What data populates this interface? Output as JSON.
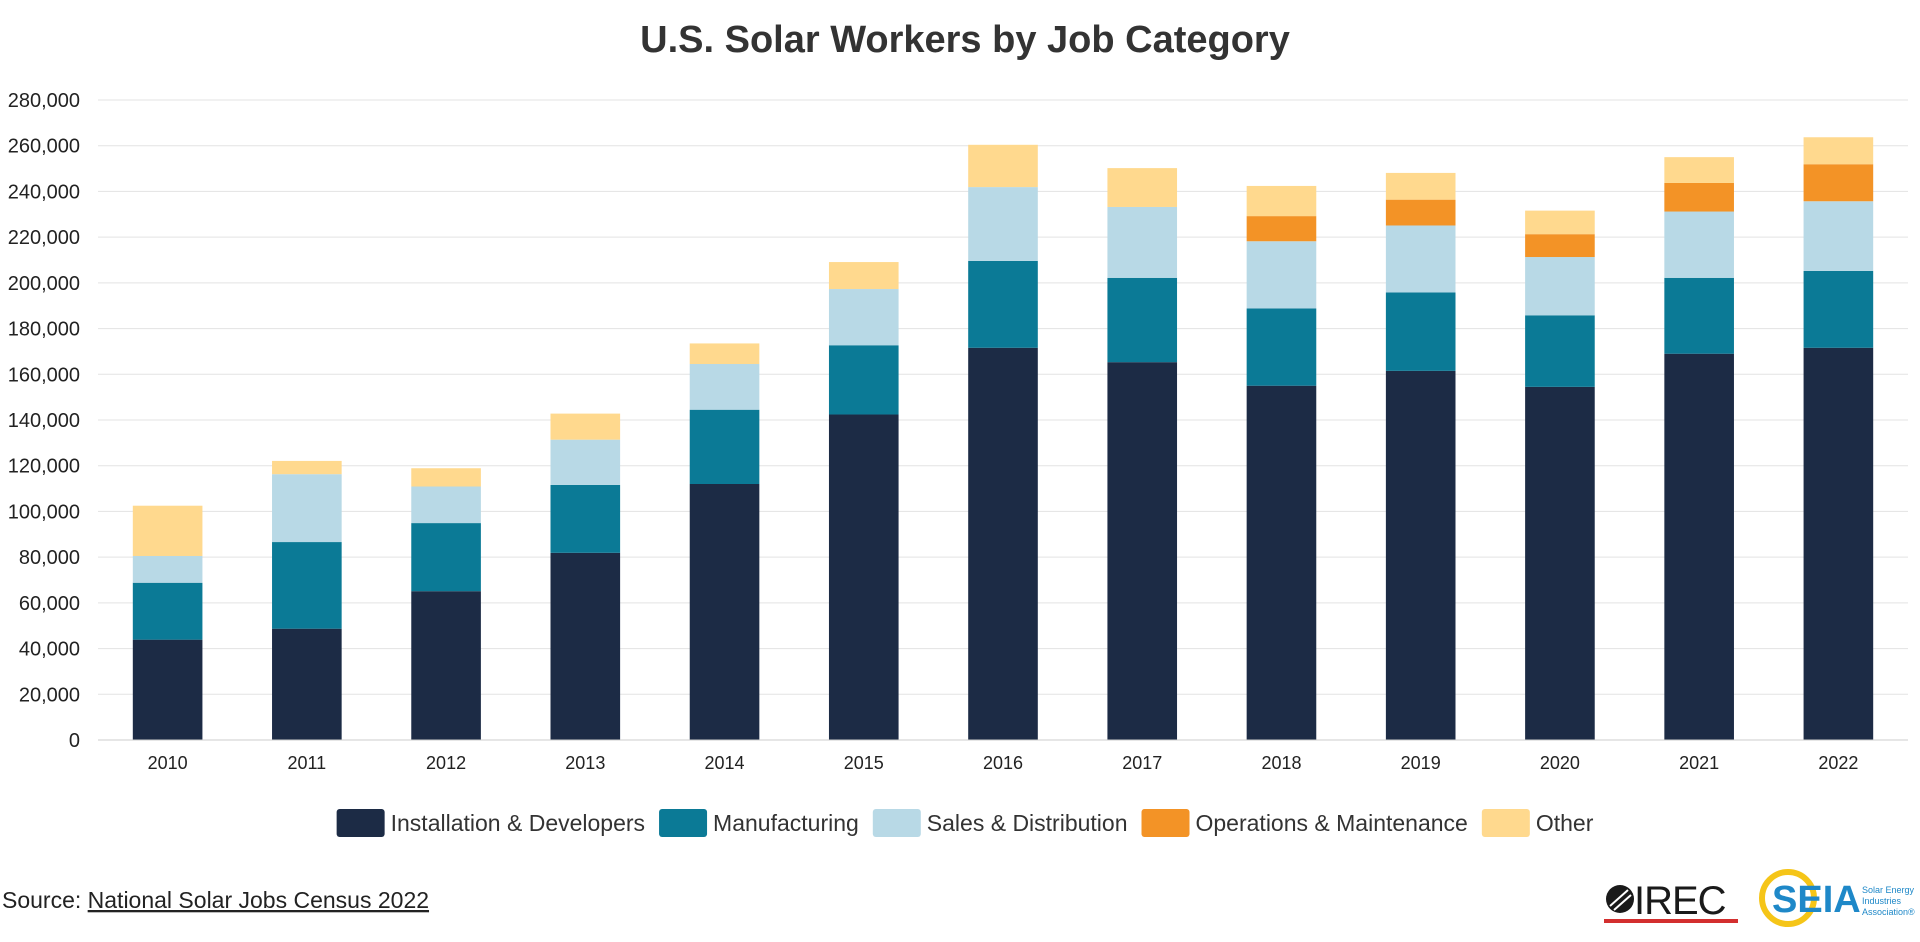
{
  "chart_data": {
    "type": "bar",
    "stacked": true,
    "title": "U.S. Solar Workers by Job Category",
    "xlabel": "",
    "ylabel": "",
    "ylim": [
      0,
      280000
    ],
    "yticks": [
      0,
      20000,
      40000,
      60000,
      80000,
      100000,
      120000,
      140000,
      160000,
      180000,
      200000,
      220000,
      240000,
      260000,
      280000
    ],
    "ytick_labels": [
      "0",
      "20,000",
      "40,000",
      "60,000",
      "80,000",
      "100,000",
      "120,000",
      "140,000",
      "160,000",
      "180,000",
      "200,000",
      "220,000",
      "240,000",
      "260,000",
      "280,000"
    ],
    "grid": true,
    "legend_position": "bottom",
    "categories": [
      "2010",
      "2011",
      "2012",
      "2013",
      "2014",
      "2015",
      "2016",
      "2017",
      "2018",
      "2019",
      "2020",
      "2021",
      "2022"
    ],
    "series": [
      {
        "name": "Installation & Developers",
        "color": "#1c2b45",
        "values": [
          43900,
          48700,
          65100,
          81900,
          112000,
          142400,
          171600,
          165300,
          155000,
          161500,
          154500,
          169000,
          171600
        ]
      },
      {
        "name": "Manufacturing",
        "color": "#0b7a96",
        "values": [
          24900,
          37900,
          29800,
          29700,
          32500,
          30300,
          38000,
          36900,
          33800,
          34300,
          31300,
          33200,
          33600
        ]
      },
      {
        "name": "Sales & Distribution",
        "color": "#b8d9e6",
        "values": [
          11700,
          29700,
          16000,
          19800,
          20000,
          24600,
          32300,
          31000,
          29400,
          29300,
          25500,
          29000,
          30500
        ]
      },
      {
        "name": "Operations & Maintenance",
        "color": "#f39326",
        "values": [
          0,
          0,
          0,
          0,
          0,
          0,
          0,
          0,
          11000,
          11300,
          10000,
          12500,
          16200
        ]
      },
      {
        "name": "Other",
        "color": "#ffd98e",
        "values": [
          22000,
          5800,
          8000,
          11400,
          9000,
          11800,
          18500,
          17000,
          13200,
          11700,
          10300,
          11300,
          11800
        ]
      }
    ]
  },
  "source": {
    "prefix": "Source: ",
    "link_text": "National Solar Jobs Census 2022"
  },
  "logos": {
    "irec": {
      "text": "IREC",
      "color": "#1a1a1a",
      "underline_color": "#d32f2f"
    },
    "seia": {
      "text": "SEIA",
      "color": "#1e88c8",
      "ring_color": "#f5c518",
      "tagline": [
        "Solar Energy",
        "Industries",
        "Association®"
      ]
    }
  }
}
